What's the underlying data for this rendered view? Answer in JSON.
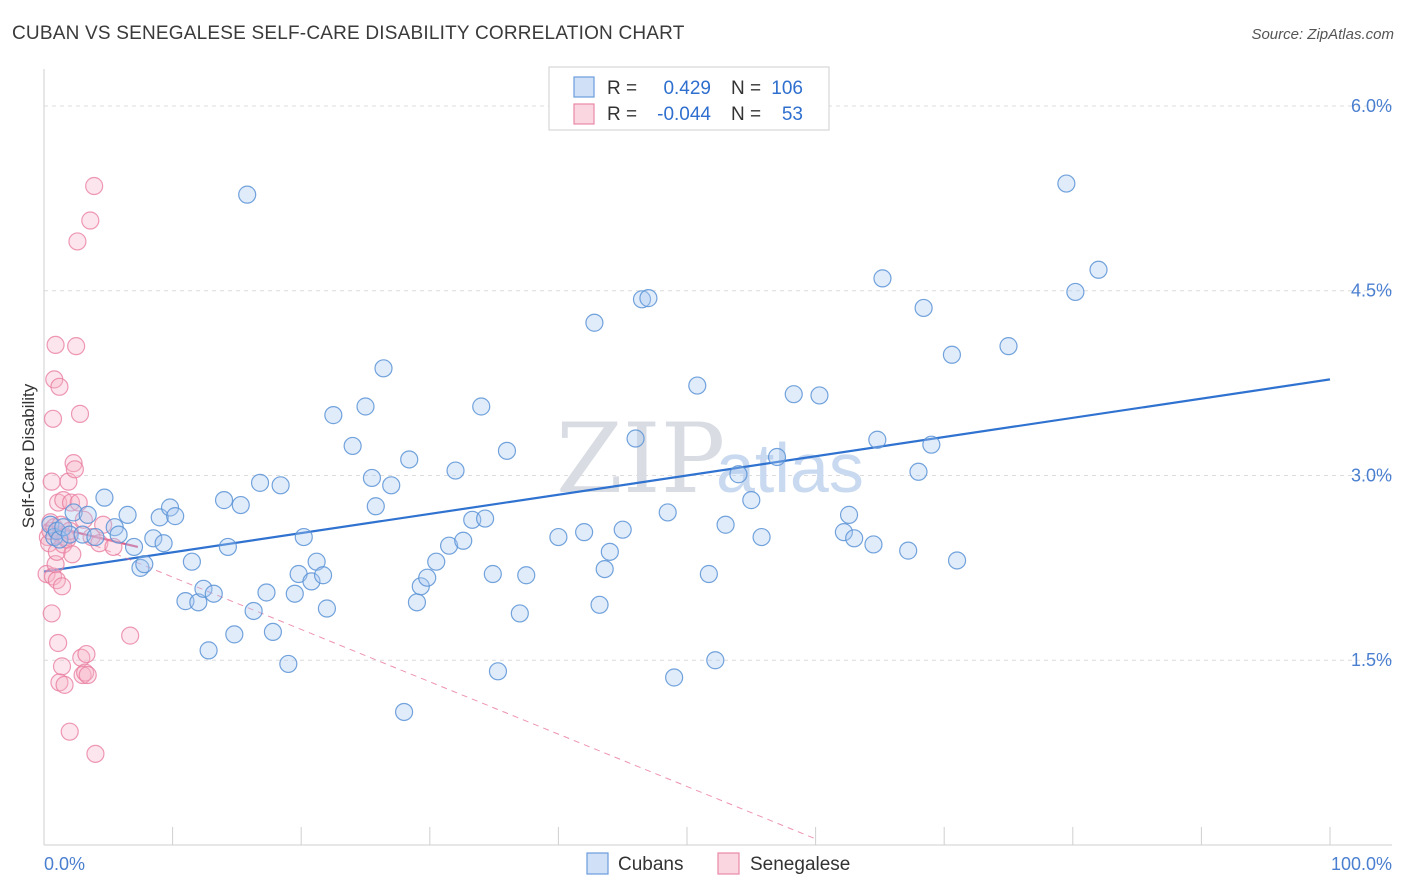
{
  "title": "CUBAN VS SENEGALESE SELF-CARE DISABILITY CORRELATION CHART",
  "source": "Source: ZipAtlas.com",
  "watermark": {
    "zip": "ZIP",
    "atlas": "atlas"
  },
  "colors": {
    "cubans": "#5b93d6",
    "cubans_fill": "rgba(170,200,240,0.35)",
    "senegalese": "#e8789c",
    "senegalese_fill": "rgba(245,180,200,0.35)",
    "grid": "#dcdcdc",
    "tick_text": "#4a7fd0"
  },
  "legend": {
    "rows": [
      {
        "r_label": "R =",
        "r_value": "0.429",
        "n_label": "N =",
        "n_value": "106"
      },
      {
        "r_label": "R =",
        "r_value": "-0.044",
        "n_label": "N =",
        "n_value": "53"
      }
    ]
  },
  "bottom_legend": {
    "cubans": "Cubans",
    "senegalese": "Senegalese"
  },
  "chart_data": {
    "type": "scatter",
    "title": "CUBAN VS SENEGALESE SELF-CARE DISABILITY CORRELATION CHART",
    "xlabel": "",
    "ylabel": "Self-Care Disability",
    "xlim": [
      0,
      100
    ],
    "ylim": [
      0,
      6.3
    ],
    "x_tick_labels": [
      "0.0%",
      "100.0%"
    ],
    "y_ticks": [
      1.5,
      3.0,
      4.5,
      6.0
    ],
    "y_tick_labels": [
      "1.5%",
      "3.0%",
      "4.5%",
      "6.0%"
    ],
    "grid": true,
    "legend_position": "top-center",
    "series": [
      {
        "name": "Cubans",
        "trend": {
          "x": [
            0,
            100
          ],
          "y": [
            2.22,
            3.78
          ]
        },
        "points": [
          [
            0.5,
            2.6
          ],
          [
            0.8,
            2.5
          ],
          [
            1.0,
            2.55
          ],
          [
            1.2,
            2.48
          ],
          [
            1.5,
            2.58
          ],
          [
            2.0,
            2.52
          ],
          [
            2.3,
            2.7
          ],
          [
            3.0,
            2.52
          ],
          [
            3.4,
            2.68
          ],
          [
            4.0,
            2.5
          ],
          [
            4.7,
            2.82
          ],
          [
            5.5,
            2.58
          ],
          [
            5.8,
            2.52
          ],
          [
            6.5,
            2.68
          ],
          [
            7.0,
            2.42
          ],
          [
            7.5,
            2.25
          ],
          [
            7.8,
            2.28
          ],
          [
            8.5,
            2.49
          ],
          [
            9.0,
            2.66
          ],
          [
            9.3,
            2.45
          ],
          [
            9.8,
            2.74
          ],
          [
            10.2,
            2.67
          ],
          [
            11.0,
            1.98
          ],
          [
            11.5,
            2.3
          ],
          [
            12.0,
            1.97
          ],
          [
            12.4,
            2.08
          ],
          [
            12.8,
            1.58
          ],
          [
            13.2,
            2.04
          ],
          [
            14.0,
            2.8
          ],
          [
            14.3,
            2.42
          ],
          [
            14.8,
            1.71
          ],
          [
            15.3,
            2.76
          ],
          [
            15.8,
            5.28
          ],
          [
            16.3,
            1.9
          ],
          [
            16.8,
            2.94
          ],
          [
            17.3,
            2.05
          ],
          [
            17.8,
            1.73
          ],
          [
            18.4,
            2.92
          ],
          [
            19.0,
            1.47
          ],
          [
            19.5,
            2.04
          ],
          [
            19.8,
            2.2
          ],
          [
            20.2,
            2.5
          ],
          [
            20.8,
            2.14
          ],
          [
            21.2,
            2.3
          ],
          [
            21.7,
            2.19
          ],
          [
            22.0,
            1.92
          ],
          [
            22.5,
            3.49
          ],
          [
            24.0,
            3.24
          ],
          [
            25.0,
            3.56
          ],
          [
            25.5,
            2.98
          ],
          [
            25.8,
            2.75
          ],
          [
            26.4,
            3.87
          ],
          [
            27.0,
            2.92
          ],
          [
            28.0,
            1.08
          ],
          [
            28.4,
            3.13
          ],
          [
            29.0,
            1.97
          ],
          [
            29.3,
            2.1
          ],
          [
            29.8,
            2.17
          ],
          [
            30.5,
            2.3
          ],
          [
            31.5,
            2.43
          ],
          [
            32.0,
            3.04
          ],
          [
            32.6,
            2.47
          ],
          [
            33.3,
            2.64
          ],
          [
            34.0,
            3.56
          ],
          [
            34.3,
            2.65
          ],
          [
            34.9,
            2.2
          ],
          [
            35.3,
            1.41
          ],
          [
            36.0,
            3.2
          ],
          [
            37.0,
            1.88
          ],
          [
            37.5,
            2.19
          ],
          [
            40.0,
            2.5
          ],
          [
            42.0,
            2.54
          ],
          [
            42.8,
            4.24
          ],
          [
            43.2,
            1.95
          ],
          [
            43.6,
            2.24
          ],
          [
            44.0,
            2.38
          ],
          [
            45.0,
            2.56
          ],
          [
            46.0,
            3.3
          ],
          [
            46.5,
            4.43
          ],
          [
            47.0,
            4.44
          ],
          [
            48.5,
            2.7
          ],
          [
            49.0,
            1.36
          ],
          [
            50.8,
            3.73
          ],
          [
            51.7,
            2.2
          ],
          [
            52.2,
            1.5
          ],
          [
            53.0,
            2.6
          ],
          [
            54.0,
            3.01
          ],
          [
            55.0,
            2.8
          ],
          [
            55.8,
            2.5
          ],
          [
            57.0,
            3.15
          ],
          [
            58.3,
            3.66
          ],
          [
            60.3,
            3.65
          ],
          [
            62.2,
            2.54
          ],
          [
            62.6,
            2.68
          ],
          [
            63.0,
            2.49
          ],
          [
            64.5,
            2.44
          ],
          [
            64.8,
            3.29
          ],
          [
            65.2,
            4.6
          ],
          [
            67.2,
            2.39
          ],
          [
            68.0,
            3.03
          ],
          [
            68.4,
            4.36
          ],
          [
            69.0,
            3.25
          ],
          [
            70.6,
            3.98
          ],
          [
            71.0,
            2.31
          ],
          [
            75.0,
            4.05
          ],
          [
            79.5,
            5.37
          ],
          [
            80.2,
            4.49
          ],
          [
            82.0,
            4.67
          ]
        ]
      },
      {
        "name": "Senegalese",
        "trend_solid": {
          "x": [
            0,
            7.3
          ],
          "y": [
            2.6,
            2.42
          ]
        },
        "trend_dashed": {
          "x": [
            0,
            60
          ],
          "y": [
            2.6,
            0.05
          ]
        },
        "points": [
          [
            0.2,
            2.2
          ],
          [
            0.3,
            2.5
          ],
          [
            0.4,
            2.45
          ],
          [
            0.5,
            2.55
          ],
          [
            0.5,
            2.62
          ],
          [
            0.6,
            1.88
          ],
          [
            0.6,
            2.95
          ],
          [
            0.7,
            3.46
          ],
          [
            0.7,
            2.18
          ],
          [
            0.8,
            2.58
          ],
          [
            0.8,
            3.78
          ],
          [
            0.9,
            2.28
          ],
          [
            0.9,
            4.06
          ],
          [
            1.0,
            2.15
          ],
          [
            1.0,
            2.38
          ],
          [
            1.1,
            1.64
          ],
          [
            1.1,
            2.78
          ],
          [
            1.2,
            1.32
          ],
          [
            1.2,
            3.72
          ],
          [
            1.3,
            2.52
          ],
          [
            1.3,
            2.6
          ],
          [
            1.4,
            1.45
          ],
          [
            1.4,
            2.1
          ],
          [
            1.5,
            2.8
          ],
          [
            1.5,
            2.44
          ],
          [
            1.6,
            1.3
          ],
          [
            1.7,
            2.5
          ],
          [
            1.8,
            2.48
          ],
          [
            1.9,
            2.95
          ],
          [
            2.0,
            0.92
          ],
          [
            2.1,
            2.78
          ],
          [
            2.2,
            2.36
          ],
          [
            2.3,
            3.1
          ],
          [
            2.4,
            3.05
          ],
          [
            2.5,
            4.05
          ],
          [
            2.6,
            4.9
          ],
          [
            2.7,
            2.78
          ],
          [
            2.8,
            3.5
          ],
          [
            2.9,
            1.52
          ],
          [
            3.0,
            1.38
          ],
          [
            3.1,
            2.64
          ],
          [
            3.2,
            1.4
          ],
          [
            3.3,
            1.55
          ],
          [
            3.4,
            1.38
          ],
          [
            3.6,
            5.07
          ],
          [
            3.7,
            2.5
          ],
          [
            3.9,
            5.35
          ],
          [
            4.0,
            0.74
          ],
          [
            4.3,
            2.45
          ],
          [
            4.6,
            2.6
          ],
          [
            5.4,
            2.42
          ],
          [
            6.7,
            1.7
          ],
          [
            2.0,
            2.55
          ]
        ]
      }
    ]
  }
}
